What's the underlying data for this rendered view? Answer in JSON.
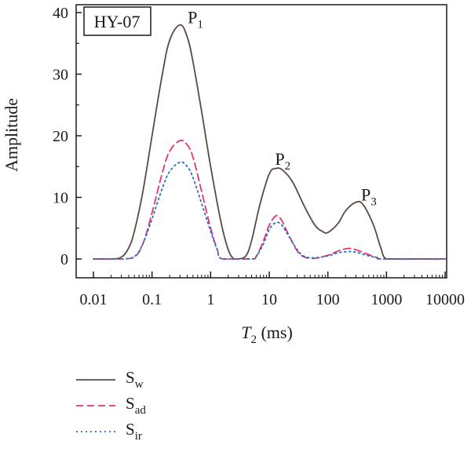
{
  "chart_data": {
    "type": "line",
    "title": "",
    "xlabel": "T",
    "xlabel_sub": "2",
    "xlabel_unit": " (ms)",
    "ylabel": "Amplitude",
    "xscale": "log",
    "xlim": [
      0.01,
      10000
    ],
    "ylim": [
      -3,
      42
    ],
    "x_ticks": [
      0.01,
      0.1,
      1,
      10,
      100,
      1000,
      10000
    ],
    "x_tick_labels": [
      "0.01",
      "0.1",
      "1",
      "10",
      "100",
      "1000",
      "10000"
    ],
    "y_ticks": [
      0,
      10,
      20,
      30,
      40
    ],
    "y_tick_labels": [
      "0",
      "10",
      "20",
      "30",
      "40"
    ],
    "sample_label": "HY-07",
    "legend_position": "bottom-left",
    "series": [
      {
        "name": "S",
        "sub": "w",
        "color": "#5a4a42",
        "dash": "none",
        "points": [
          [
            0.01,
            0
          ],
          [
            0.02,
            0
          ],
          [
            0.03,
            0.3
          ],
          [
            0.04,
            1.8
          ],
          [
            0.05,
            4.5
          ],
          [
            0.07,
            11
          ],
          [
            0.1,
            20
          ],
          [
            0.15,
            30
          ],
          [
            0.2,
            35.5
          ],
          [
            0.3,
            38
          ],
          [
            0.4,
            36
          ],
          [
            0.5,
            32
          ],
          [
            0.7,
            24
          ],
          [
            1,
            15
          ],
          [
            1.5,
            6
          ],
          [
            2,
            1.5
          ],
          [
            2.5,
            0
          ],
          [
            3,
            0
          ],
          [
            4,
            0.5
          ],
          [
            5,
            3
          ],
          [
            7,
            9
          ],
          [
            10,
            13.8
          ],
          [
            13,
            14.7
          ],
          [
            17,
            14.4
          ],
          [
            25,
            12.5
          ],
          [
            40,
            8.5
          ],
          [
            60,
            5.5
          ],
          [
            80,
            4.5
          ],
          [
            100,
            4.3
          ],
          [
            150,
            5.8
          ],
          [
            200,
            7.8
          ],
          [
            300,
            9.2
          ],
          [
            400,
            8.8
          ],
          [
            600,
            5.5
          ],
          [
            800,
            1.8
          ],
          [
            1000,
            0
          ],
          [
            2000,
            0
          ],
          [
            10000,
            0
          ]
        ]
      },
      {
        "name": "S",
        "sub": "ad",
        "color": "#e8336e",
        "dash": "9 5",
        "points": [
          [
            0.01,
            0
          ],
          [
            0.03,
            0
          ],
          [
            0.05,
            0.3
          ],
          [
            0.07,
            2.5
          ],
          [
            0.1,
            7.5
          ],
          [
            0.15,
            14
          ],
          [
            0.2,
            17.5
          ],
          [
            0.3,
            19.2
          ],
          [
            0.4,
            18.5
          ],
          [
            0.5,
            16.5
          ],
          [
            0.7,
            11
          ],
          [
            1,
            5
          ],
          [
            1.3,
            1.5
          ],
          [
            1.6,
            0
          ],
          [
            5,
            0
          ],
          [
            6,
            0.4
          ],
          [
            8,
            3
          ],
          [
            10,
            5.5
          ],
          [
            13,
            7
          ],
          [
            16,
            6.4
          ],
          [
            20,
            4.5
          ],
          [
            30,
            1.3
          ],
          [
            40,
            0.3
          ],
          [
            60,
            0.1
          ],
          [
            100,
            0.6
          ],
          [
            150,
            1.3
          ],
          [
            220,
            1.7
          ],
          [
            300,
            1.5
          ],
          [
            500,
            0.7
          ],
          [
            700,
            0.2
          ],
          [
            900,
            0
          ],
          [
            10000,
            0
          ]
        ]
      },
      {
        "name": "S",
        "sub": "ir",
        "color": "#2a6fc4",
        "dash": "2 4",
        "points": [
          [
            0.01,
            0
          ],
          [
            0.03,
            0
          ],
          [
            0.05,
            0.4
          ],
          [
            0.07,
            2.5
          ],
          [
            0.1,
            6.5
          ],
          [
            0.15,
            11.5
          ],
          [
            0.2,
            14.2
          ],
          [
            0.3,
            15.7
          ],
          [
            0.4,
            15
          ],
          [
            0.5,
            13.2
          ],
          [
            0.7,
            9
          ],
          [
            1,
            4.5
          ],
          [
            1.3,
            1.5
          ],
          [
            1.6,
            0
          ],
          [
            5,
            0
          ],
          [
            6,
            0.4
          ],
          [
            8,
            2.5
          ],
          [
            10,
            4.8
          ],
          [
            13,
            5.9
          ],
          [
            16,
            5.6
          ],
          [
            20,
            4.2
          ],
          [
            30,
            1.5
          ],
          [
            40,
            0.4
          ],
          [
            60,
            0.2
          ],
          [
            100,
            0.5
          ],
          [
            150,
            1
          ],
          [
            220,
            1.2
          ],
          [
            300,
            1.1
          ],
          [
            500,
            0.5
          ],
          [
            700,
            0.2
          ],
          [
            900,
            0
          ],
          [
            10000,
            0
          ]
        ]
      }
    ],
    "annotations": [
      {
        "label": "P",
        "sub": "1",
        "x": 0.55,
        "y": 38.3
      },
      {
        "label": "P",
        "sub": "2",
        "x": 17,
        "y": 15.3
      },
      {
        "label": "P",
        "sub": "3",
        "x": 500,
        "y": 9.5
      }
    ]
  }
}
